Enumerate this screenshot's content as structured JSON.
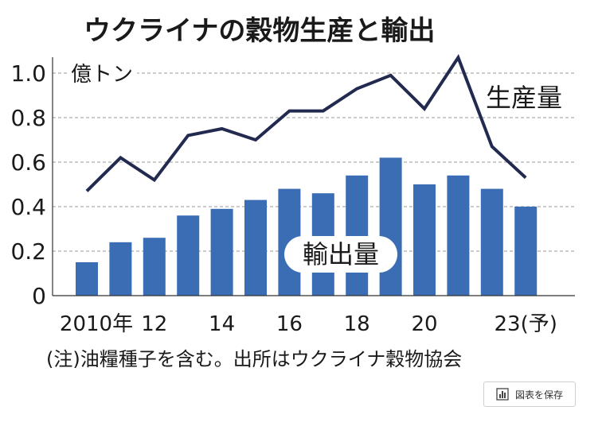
{
  "chart_data": {
    "type": "bar+line",
    "title": "ウクライナの穀物生産と輸出",
    "unit_label": "億トン",
    "ylim": [
      0,
      1.05
    ],
    "yticks": [
      0,
      0.2,
      0.4,
      0.6,
      0.8,
      1.0
    ],
    "ytick_labels": [
      "0",
      "0.2",
      "0.4",
      "0.6",
      "0.8",
      "1.0"
    ],
    "x": [
      2010,
      2011,
      2012,
      2013,
      2014,
      2015,
      2016,
      2017,
      2018,
      2019,
      2020,
      2021,
      2022,
      2023
    ],
    "xtick_labels": [
      {
        "year": 2010,
        "label": "2010年"
      },
      {
        "year": 2012,
        "label": "12"
      },
      {
        "year": 2014,
        "label": "14"
      },
      {
        "year": 2016,
        "label": "16"
      },
      {
        "year": 2018,
        "label": "18"
      },
      {
        "year": 2020,
        "label": "20"
      },
      {
        "year": 2023,
        "label": "23(予)"
      }
    ],
    "series": [
      {
        "name": "輸出量",
        "type": "bar",
        "color": "#3b6db5",
        "values": [
          0.15,
          0.24,
          0.26,
          0.36,
          0.39,
          0.43,
          0.48,
          0.46,
          0.54,
          0.62,
          0.5,
          0.54,
          0.48,
          0.4
        ]
      },
      {
        "name": "生産量",
        "type": "line",
        "color": "#232a4f",
        "values": [
          0.47,
          0.62,
          0.52,
          0.72,
          0.75,
          0.7,
          0.83,
          0.83,
          0.93,
          0.99,
          0.84,
          1.07,
          0.67,
          0.53
        ]
      }
    ],
    "grid": "horizontal-dashed"
  },
  "footnote": "(注)油糧種子を含む。出所はウクライナ穀物協会",
  "save_button": {
    "label": "図表を保存",
    "icon": "bar-chart-icon"
  }
}
